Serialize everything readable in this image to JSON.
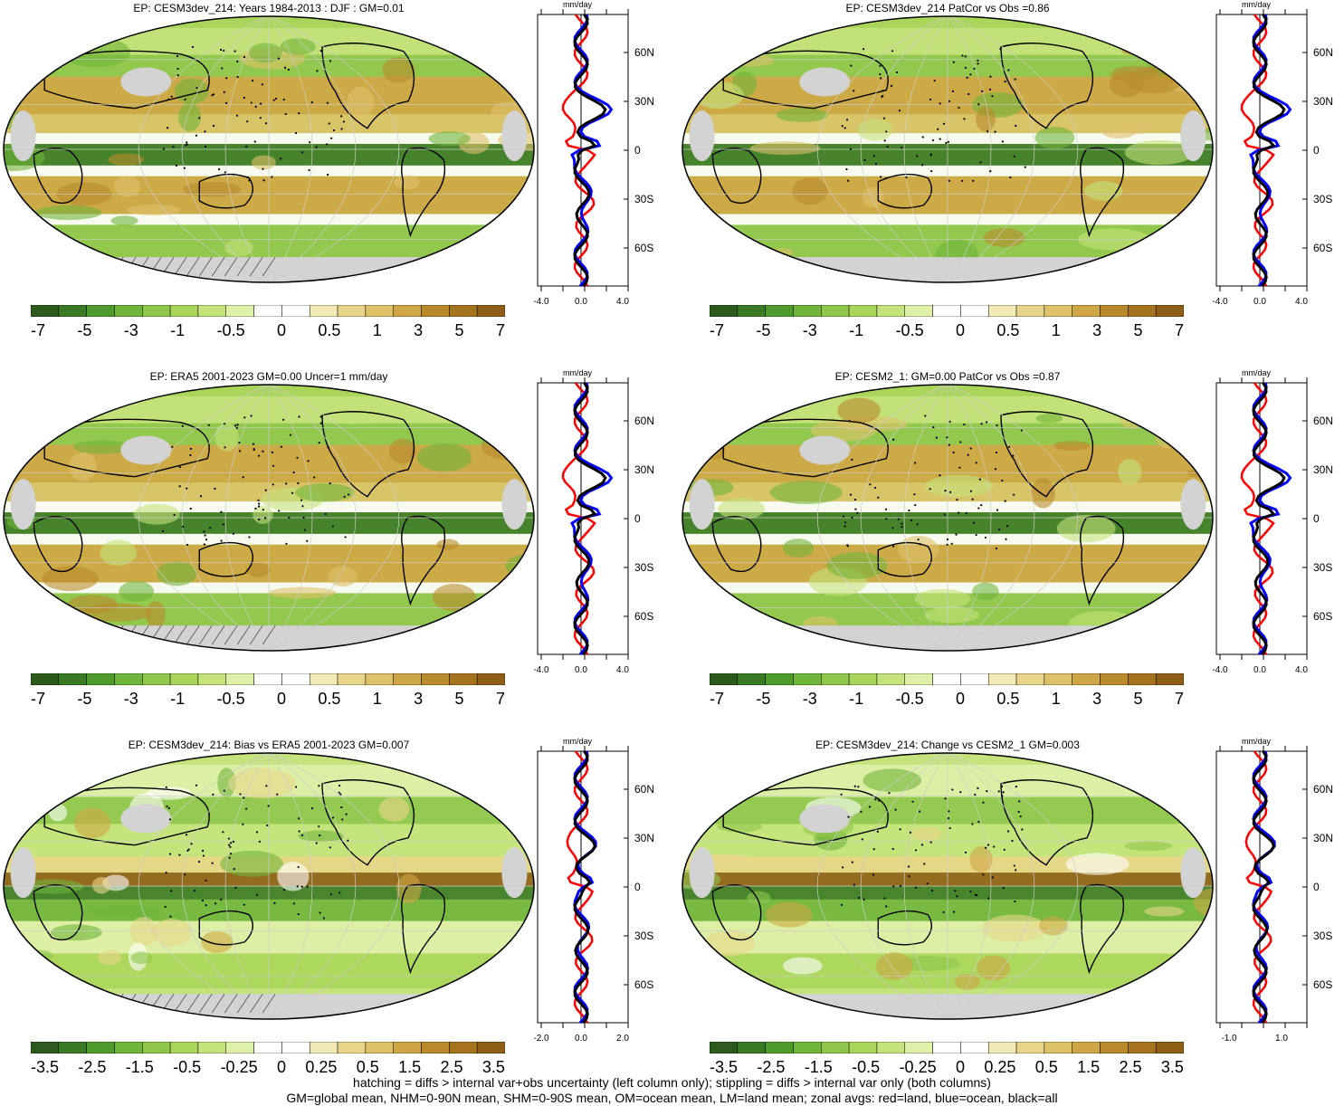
{
  "panels": [
    {
      "title": "EP: CESM3dev_214: Years 1984-2013 : DJF : GM=0.01",
      "colorbar_labels": [
        "-7",
        "-5",
        "-3",
        "-1",
        "-0.5",
        "0",
        "0.5",
        "1",
        "3",
        "5",
        "7"
      ],
      "zonal_xticks": [
        "-4.0",
        "0.0",
        "4.0"
      ]
    },
    {
      "title": "EP: CESM3dev_214 PatCor vs Obs =0.86",
      "colorbar_labels": [
        "-7",
        "-5",
        "-3",
        "-1",
        "-0.5",
        "0",
        "0.5",
        "1",
        "3",
        "5",
        "7"
      ],
      "zonal_xticks": [
        "-4.0",
        "0.0",
        "4.0"
      ]
    },
    {
      "title": "EP: ERA5 2001-2023 GM=0.00 Uncer=1 mm/day",
      "colorbar_labels": [
        "-7",
        "-5",
        "-3",
        "-1",
        "-0.5",
        "0",
        "0.5",
        "1",
        "3",
        "5",
        "7"
      ],
      "zonal_xticks": [
        "-4.0",
        "0.0",
        "4.0"
      ]
    },
    {
      "title": "EP: CESM2_1: GM=0.00 PatCor vs Obs =0.87",
      "colorbar_labels": [
        "-7",
        "-5",
        "-3",
        "-1",
        "-0.5",
        "0",
        "0.5",
        "1",
        "3",
        "5",
        "7"
      ],
      "zonal_xticks": [
        "-4.0",
        "0.0",
        "4.0"
      ]
    },
    {
      "title": "EP: CESM3dev_214: Bias vs ERA5 2001-2023 GM=0.007",
      "colorbar_labels": [
        "-3.5",
        "-2.5",
        "-1.5",
        "-0.5",
        "-0.25",
        "0",
        "0.25",
        "0.5",
        "1.5",
        "2.5",
        "3.5"
      ],
      "zonal_xticks": [
        "-2.0",
        "0.0",
        "2.0"
      ]
    },
    {
      "title": "EP: CESM3dev_214: Change vs CESM2_1 GM=0.003",
      "colorbar_labels": [
        "-3.5",
        "-2.5",
        "-1.5",
        "-0.5",
        "-0.25",
        "0",
        "0.25",
        "0.5",
        "1.5",
        "2.5",
        "3.5"
      ],
      "zonal_xticks": [
        "-1.0",
        "1.0"
      ]
    }
  ],
  "zonal_units": "mm/day",
  "lat_labels": [
    "60N",
    "30N",
    "0",
    "30S",
    "60S"
  ],
  "footer": {
    "line1": "hatching = diffs > internal var+obs uncertainty (left column only); stippling = diffs > internal var only (both columns)",
    "line2": "GM=global mean, NHM=0-90N mean, SHM=0-90S mean, OM=ocean mean, LM=land mean; zonal avgs: red=land, blue=ocean, black=all"
  },
  "colors": {
    "land": "#ff0000",
    "ocean": "#0000ff",
    "all": "#000000",
    "missing": "#d3d3d3",
    "colorbar": [
      "#2c5a1c",
      "#3b7a25",
      "#4f9a2c",
      "#6fb43b",
      "#8fc74c",
      "#a9d65a",
      "#c4e37c",
      "#dff0a8",
      "#ffffff",
      "#ffffff",
      "#f3e9b5",
      "#e9d58a",
      "#ddc26a",
      "#cfa645",
      "#b98a2c",
      "#a6741f",
      "#8e5e16"
    ]
  }
}
